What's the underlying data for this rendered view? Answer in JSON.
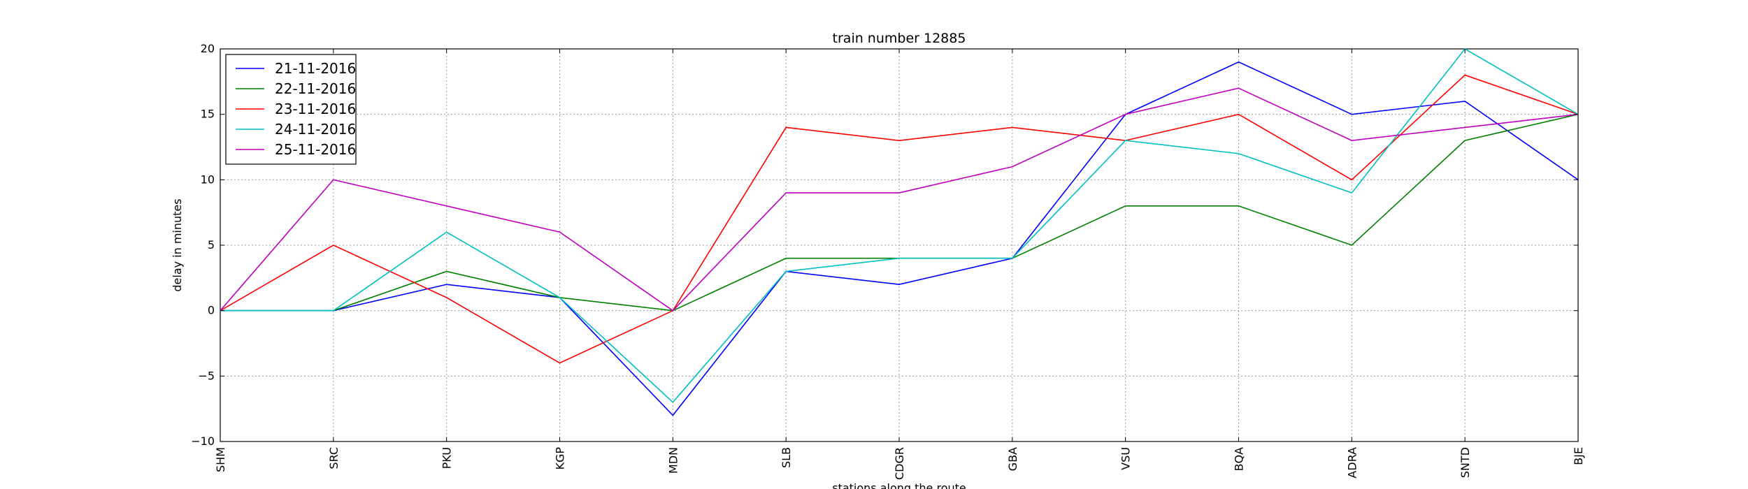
{
  "chart_data": {
    "type": "line",
    "title": "train number 12885",
    "xlabel": "stations along the route",
    "ylabel": "delay in minutes",
    "categories": [
      "SHM",
      "SRC",
      "PKU",
      "KGP",
      "MDN",
      "SLB",
      "CDGR",
      "GBA",
      "VSU",
      "BQA",
      "ADRA",
      "SNTD",
      "BJE"
    ],
    "ylim": [
      -10,
      20
    ],
    "yticks": [
      -10,
      -5,
      0,
      5,
      10,
      15,
      20
    ],
    "grid": true,
    "legend_position": "top-left",
    "series": [
      {
        "name": "21-11-2016",
        "color": "#0000ff",
        "values": [
          0,
          0,
          2,
          1,
          -8,
          3,
          2,
          4,
          15,
          19,
          15,
          16,
          10
        ]
      },
      {
        "name": "22-11-2016",
        "color": "#008000",
        "values": [
          0,
          0,
          3,
          1,
          0,
          4,
          4,
          4,
          8,
          8,
          5,
          13,
          15
        ]
      },
      {
        "name": "23-11-2016",
        "color": "#ff0000",
        "values": [
          0,
          5,
          1,
          -4,
          0,
          14,
          13,
          14,
          13,
          15,
          10,
          18,
          15
        ]
      },
      {
        "name": "24-11-2016",
        "color": "#00bfbf",
        "values": [
          0,
          0,
          6,
          1,
          -7,
          3,
          4,
          4,
          13,
          12,
          9,
          20,
          15
        ]
      },
      {
        "name": "25-11-2016",
        "color": "#bf00bf",
        "values": [
          0,
          10,
          8,
          6,
          0,
          9,
          9,
          11,
          15,
          17,
          13,
          14,
          15
        ]
      }
    ]
  }
}
